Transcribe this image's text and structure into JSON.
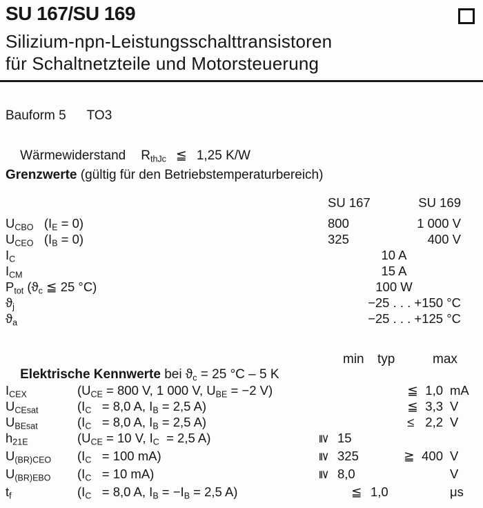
{
  "page": {
    "title": "SU 167/SU 169",
    "subtitle": [
      "Silizium-npn-Leistungsschalttransistoren",
      "für Schaltnetzteile und Motorsteuerung"
    ],
    "corner_icon": "square-outline"
  },
  "package_info": {
    "bauform": "Bauform 5",
    "package": "TO3",
    "thermal": {
      "label": "Wärmewiderstand",
      "symbol": [
        {
          "t": "R"
        },
        {
          "t": "thJc",
          "sub": true
        }
      ],
      "relation": "≦",
      "value": "1,25 K/W"
    }
  },
  "limits": {
    "heading": "Grenzwerte",
    "note": " (gültig für den Betriebstemperaturbereich)",
    "columns": [
      "SU 167",
      "SU 169"
    ],
    "rows": [
      {
        "label": [
          {
            "t": "U"
          },
          {
            "t": "CBO",
            "sub": true
          },
          {
            "t": "   (I"
          },
          {
            "t": "E",
            "sub": true
          },
          {
            "t": " = 0)"
          }
        ],
        "su167": "800",
        "su169": "1 000 V"
      },
      {
        "label": [
          {
            "t": "U"
          },
          {
            "t": "CEO",
            "sub": true
          },
          {
            "t": "   (I"
          },
          {
            "t": "B",
            "sub": true
          },
          {
            "t": " = 0)"
          }
        ],
        "su167": "325",
        "su169": "400 V"
      },
      {
        "label": [
          {
            "t": "I"
          },
          {
            "t": "C",
            "sub": true
          }
        ],
        "center": "10 A"
      },
      {
        "label": [
          {
            "t": "I"
          },
          {
            "t": "CM",
            "sub": true
          }
        ],
        "center": "15 A"
      },
      {
        "label": [
          {
            "t": "P"
          },
          {
            "t": "tot",
            "sub": true
          },
          {
            "t": " (ϑ"
          },
          {
            "t": "c",
            "sub": true
          },
          {
            "t": " ≦ 25 °C)"
          }
        ],
        "center": "100 W"
      },
      {
        "label": [
          {
            "t": "ϑ"
          },
          {
            "t": "j",
            "sub": true
          }
        ],
        "right": "−25 . . . +150 °C"
      },
      {
        "label": [
          {
            "t": "ϑ"
          },
          {
            "t": "a",
            "sub": true
          }
        ],
        "right": "−25 . . . +125 °C"
      }
    ]
  },
  "electrical": {
    "heading": "Elektrische Kennwerte",
    "heading_rest": [
      {
        "t": " bei ϑ"
      },
      {
        "t": "c",
        "sub": true
      },
      {
        "t": " = 25 °C – 5 K"
      }
    ],
    "col_headers": [
      "min",
      "typ",
      "max"
    ],
    "rows": [
      {
        "label": [
          {
            "t": "I"
          },
          {
            "t": "CEX",
            "sub": true
          }
        ],
        "cond": [
          {
            "t": "(U"
          },
          {
            "t": "CE",
            "sub": true
          },
          {
            "t": " = 800 V, 1 000 V, U"
          },
          {
            "t": "BE",
            "sub": true
          },
          {
            "t": " = −2 V)"
          }
        ],
        "max_sym": "≦",
        "max_val": "1,0",
        "unit": "mA"
      },
      {
        "label": [
          {
            "t": "U"
          },
          {
            "t": "CEsat",
            "sub": true
          }
        ],
        "cond": [
          {
            "t": "(I"
          },
          {
            "t": "C",
            "sub": true
          },
          {
            "t": "   = 8,0 A, I"
          },
          {
            "t": "B",
            "sub": true
          },
          {
            "t": " = 2,5 A)"
          }
        ],
        "max_sym": "≦",
        "max_val": "3,3",
        "unit": "V"
      },
      {
        "label": [
          {
            "t": "U"
          },
          {
            "t": "BEsat",
            "sub": true
          }
        ],
        "cond": [
          {
            "t": "(I"
          },
          {
            "t": "C",
            "sub": true
          },
          {
            "t": "   = 8,0 A, I"
          },
          {
            "t": "B",
            "sub": true
          },
          {
            "t": " = 2,5 A)"
          }
        ],
        "max_sym": "≤",
        "max_val": "2,2",
        "unit": "V"
      },
      {
        "label": [
          {
            "t": "h"
          },
          {
            "t": "21E",
            "sub": true
          }
        ],
        "cond": [
          {
            "t": "(U"
          },
          {
            "t": "CE",
            "sub": true
          },
          {
            "t": " = 10 V, I"
          },
          {
            "t": "C",
            "sub": true
          },
          {
            "t": "  = 2,5 A)"
          }
        ],
        "min_sym": "≧",
        "min_rot": true,
        "min_val": "15"
      },
      {
        "label": [
          {
            "t": "U"
          },
          {
            "t": "(BR)CEO",
            "sub": true
          }
        ],
        "cond": [
          {
            "t": "(I"
          },
          {
            "t": "C",
            "sub": true
          },
          {
            "t": "   = 100 mA)"
          }
        ],
        "min_sym": "≧",
        "min_rot": true,
        "min_val": "325",
        "max_sym": "≧",
        "max_val": "400",
        "unit": "V"
      },
      {
        "label": [
          {
            "t": "U"
          },
          {
            "t": "(BR)EBO",
            "sub": true
          }
        ],
        "cond": [
          {
            "t": "(I"
          },
          {
            "t": "C",
            "sub": true
          },
          {
            "t": "   = 10 mA)"
          }
        ],
        "min_sym": "≧",
        "min_rot": true,
        "min_val": "8,0",
        "unit": "V"
      },
      {
        "label": [
          {
            "t": "t"
          },
          {
            "t": "f",
            "sub": true
          }
        ],
        "cond": [
          {
            "t": "(I"
          },
          {
            "t": "C",
            "sub": true
          },
          {
            "t": "   = 8,0 A, I"
          },
          {
            "t": "B",
            "sub": true
          },
          {
            "t": " = −I"
          },
          {
            "t": "B",
            "sub": true
          },
          {
            "t": " = 2,5 A)"
          }
        ],
        "min_sym": "≦",
        "min_rot": false,
        "min_shift": true,
        "min_val": "1,0",
        "unit": "μs"
      }
    ]
  }
}
